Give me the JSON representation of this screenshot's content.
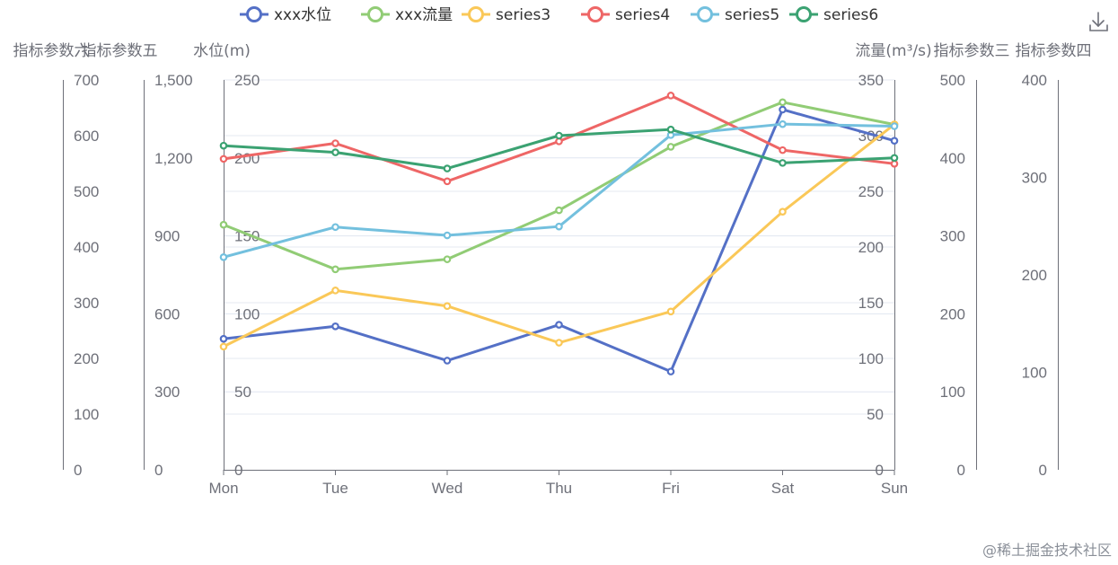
{
  "chart_data": {
    "type": "line",
    "categories": [
      "Mon",
      "Tue",
      "Wed",
      "Thu",
      "Fri",
      "Sat",
      "Sun"
    ],
    "series": [
      {
        "name": "xxx水位",
        "color": "#5470c6",
        "axis": "y0",
        "values": [
          84,
          92,
          70,
          93,
          63,
          231,
          211
        ]
      },
      {
        "name": "xxx流量",
        "color": "#91cc75",
        "axis": "y1",
        "values": [
          220,
          180,
          189,
          233,
          290,
          330,
          310
        ]
      },
      {
        "name": "series3",
        "color": "#fac858",
        "axis": "y2",
        "values": [
          158,
          230,
          210,
          163,
          203,
          331,
          443
        ]
      },
      {
        "name": "series4",
        "color": "#ee6666",
        "axis": "y3",
        "values": [
          319,
          335,
          296,
          337,
          384,
          328,
          314
        ]
      },
      {
        "name": "series5",
        "color": "#73c0de",
        "axis": "y4",
        "values": [
          818,
          934,
          902,
          936,
          1288,
          1330,
          1322
        ]
      },
      {
        "name": "series6",
        "color": "#3ba272",
        "axis": "y5",
        "values": [
          582,
          570,
          541,
          600,
          611,
          551,
          560
        ]
      }
    ],
    "axes": {
      "x": {
        "ticks": [
          "Mon",
          "Tue",
          "Wed",
          "Thu",
          "Fri",
          "Sat",
          "Sun"
        ]
      },
      "y0": {
        "title": "水位(m)",
        "side": "left",
        "min": 0,
        "max": 250,
        "ticks": [
          "0",
          "50",
          "100",
          "150",
          "200",
          "250"
        ]
      },
      "y1": {
        "title": "流量(m³/s)",
        "side": "right",
        "min": 0,
        "max": 350,
        "ticks": [
          "0",
          "50",
          "100",
          "150",
          "200",
          "250",
          "300",
          "350"
        ]
      },
      "y2": {
        "title": "指标参数三",
        "side": "right",
        "min": 0,
        "max": 500,
        "ticks": [
          "0",
          "100",
          "200",
          "300",
          "400",
          "500"
        ]
      },
      "y3": {
        "title": "指标参数四",
        "side": "right",
        "min": 0,
        "max": 400,
        "ticks": [
          "0",
          "100",
          "200",
          "300",
          "400"
        ]
      },
      "y4": {
        "title": "指标参数五",
        "side": "left",
        "min": 0,
        "max": 1500,
        "ticks": [
          "0",
          "300",
          "600",
          "900",
          "1,200",
          "1,500"
        ]
      },
      "y5": {
        "title": "指标参数六",
        "side": "left",
        "min": 0,
        "max": 700,
        "ticks": [
          "0",
          "100",
          "200",
          "300",
          "400",
          "500",
          "600",
          "700"
        ]
      }
    },
    "legend": "top-center",
    "grid": true
  },
  "toolbox": {
    "download_icon": "download-icon"
  },
  "watermark": "@稀土掘金技术社区"
}
